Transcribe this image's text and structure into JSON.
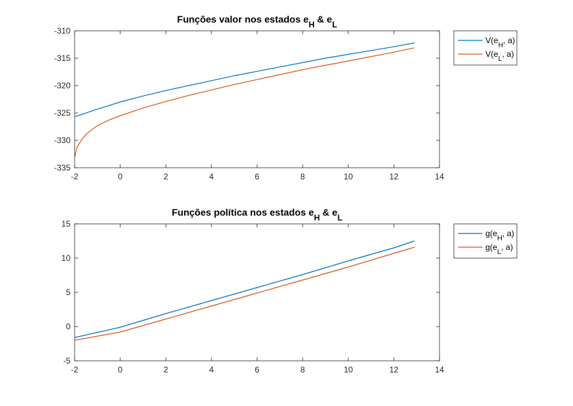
{
  "figure": {
    "colors": {
      "series_h": "#0072BD",
      "series_l": "#D95319",
      "axis": "#262626",
      "background": "#FFFFFF"
    }
  },
  "chart_data": [
    {
      "type": "line",
      "title": {
        "main": "Funções valor nos estados e",
        "sub1": "H",
        "mid": " & e",
        "sub2": "L"
      },
      "xlabel": "",
      "ylabel": "",
      "xlim": [
        -2,
        14
      ],
      "ylim": [
        -335,
        -310
      ],
      "xticks": [
        -2,
        0,
        2,
        4,
        6,
        8,
        10,
        12,
        14
      ],
      "yticks": [
        -335,
        -330,
        -325,
        -320,
        -315,
        -310
      ],
      "grid": false,
      "legend_position": "outside-top-right",
      "series": [
        {
          "name": {
            "pre": "V(e",
            "sub": "H",
            "post": ", a)"
          },
          "color": "#0072BD",
          "x": [
            -2,
            -1,
            0,
            1,
            2,
            3,
            4,
            5,
            6,
            7,
            8,
            9,
            10,
            11,
            12,
            12.9
          ],
          "y": [
            -325.7,
            -324.3,
            -323.0,
            -321.9,
            -320.9,
            -320.0,
            -319.1,
            -318.2,
            -317.4,
            -316.6,
            -315.8,
            -315.0,
            -314.3,
            -313.6,
            -312.9,
            -312.2
          ]
        },
        {
          "name": {
            "pre": "V(e",
            "sub": "L",
            "post": ", a)"
          },
          "color": "#D95319",
          "x": [
            -2,
            -1.9,
            -1.7,
            -1.5,
            -1.2,
            -1,
            -0.5,
            0,
            1,
            2,
            3,
            4,
            5,
            6,
            7,
            8,
            9,
            10,
            11,
            12,
            12.9
          ],
          "y": [
            -333.2,
            -331.3,
            -329.9,
            -328.9,
            -327.9,
            -327.3,
            -326.3,
            -325.5,
            -324.1,
            -322.9,
            -321.8,
            -320.8,
            -319.8,
            -318.9,
            -318.0,
            -317.1,
            -316.3,
            -315.5,
            -314.7,
            -313.9,
            -313.1
          ]
        }
      ]
    },
    {
      "type": "line",
      "title": {
        "main": "Funções política nos estados e",
        "sub1": "H",
        "mid": " & e",
        "sub2": "L"
      },
      "xlabel": "",
      "ylabel": "",
      "xlim": [
        -2,
        14
      ],
      "ylim": [
        -5,
        15
      ],
      "xticks": [
        -2,
        0,
        2,
        4,
        6,
        8,
        10,
        12,
        14
      ],
      "yticks": [
        -5,
        0,
        5,
        10,
        15
      ],
      "grid": false,
      "legend_position": "outside-top-right",
      "series": [
        {
          "name": {
            "pre": "g(e",
            "sub": "H",
            "post": ", a)"
          },
          "color": "#0072BD",
          "x": [
            -2,
            0,
            2,
            4,
            6,
            8,
            10,
            12,
            12.9
          ],
          "y": [
            -1.6,
            -0.1,
            1.9,
            3.8,
            5.7,
            7.6,
            9.6,
            11.5,
            12.5
          ]
        },
        {
          "name": {
            "pre": "g(e",
            "sub": "L",
            "post": ", a)"
          },
          "color": "#D95319",
          "x": [
            -2,
            0,
            2,
            4,
            6,
            8,
            10,
            12,
            12.9
          ],
          "y": [
            -2.0,
            -0.8,
            1.1,
            3.0,
            4.9,
            6.8,
            8.7,
            10.7,
            11.6
          ]
        }
      ]
    }
  ]
}
